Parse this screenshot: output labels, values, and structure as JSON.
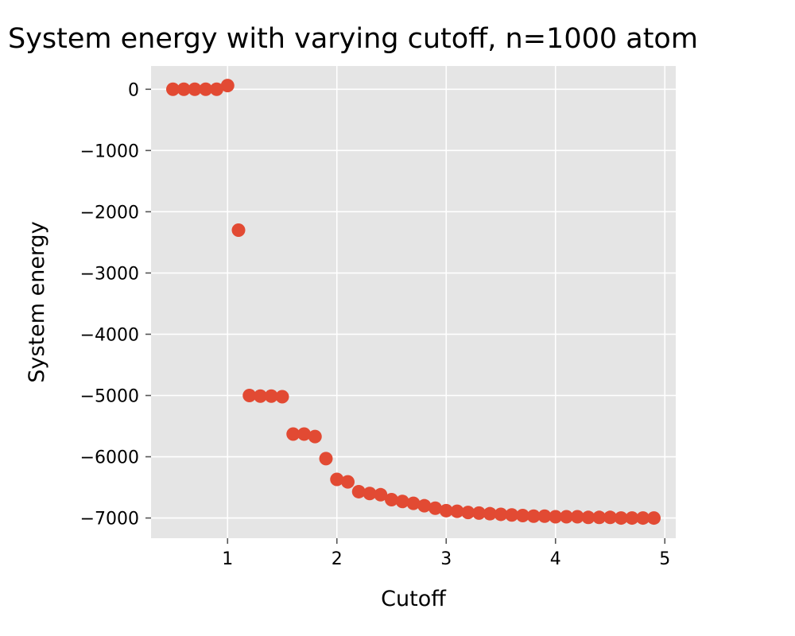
{
  "chart_data": {
    "type": "scatter",
    "title": "System energy with varying cutoff, n=1000 atom",
    "xlabel": "Cutoff",
    "ylabel": "System energy",
    "xlim": [
      0.3,
      5.1
    ],
    "ylim": [
      -7330,
      380
    ],
    "xticks": [
      1,
      2,
      3,
      4,
      5
    ],
    "xtick_labels": [
      "1",
      "2",
      "3",
      "4",
      "5"
    ],
    "yticks": [
      0,
      -1000,
      -2000,
      -3000,
      -4000,
      -5000,
      -6000,
      -7000
    ],
    "ytick_labels": [
      "0",
      "−1000",
      "−2000",
      "−3000",
      "−4000",
      "−5000",
      "−6000",
      "−7000"
    ],
    "grid": true,
    "background_color": "#e5e5e5",
    "marker_color": "#e24a33",
    "x": [
      0.5,
      0.6,
      0.7,
      0.8,
      0.9,
      1.0,
      1.1,
      1.2,
      1.3,
      1.4,
      1.5,
      1.6,
      1.7,
      1.8,
      1.9,
      2.0,
      2.1,
      2.2,
      2.3,
      2.4,
      2.5,
      2.6,
      2.7,
      2.8,
      2.9,
      3.0,
      3.1,
      3.2,
      3.3,
      3.4,
      3.5,
      3.6,
      3.7,
      3.8,
      3.9,
      4.0,
      4.1,
      4.2,
      4.3,
      4.4,
      4.5,
      4.6,
      4.7,
      4.8,
      4.9
    ],
    "y": [
      0,
      0,
      0,
      0,
      0,
      60,
      -2300,
      -5000,
      -5010,
      -5010,
      -5020,
      -5630,
      -5630,
      -5670,
      -6030,
      -6370,
      -6410,
      -6570,
      -6600,
      -6620,
      -6700,
      -6730,
      -6760,
      -6800,
      -6840,
      -6880,
      -6890,
      -6910,
      -6920,
      -6930,
      -6940,
      -6950,
      -6960,
      -6970,
      -6970,
      -6980,
      -6980,
      -6980,
      -6990,
      -6990,
      -6990,
      -7000,
      -7000,
      -7000,
      -7000
    ]
  }
}
